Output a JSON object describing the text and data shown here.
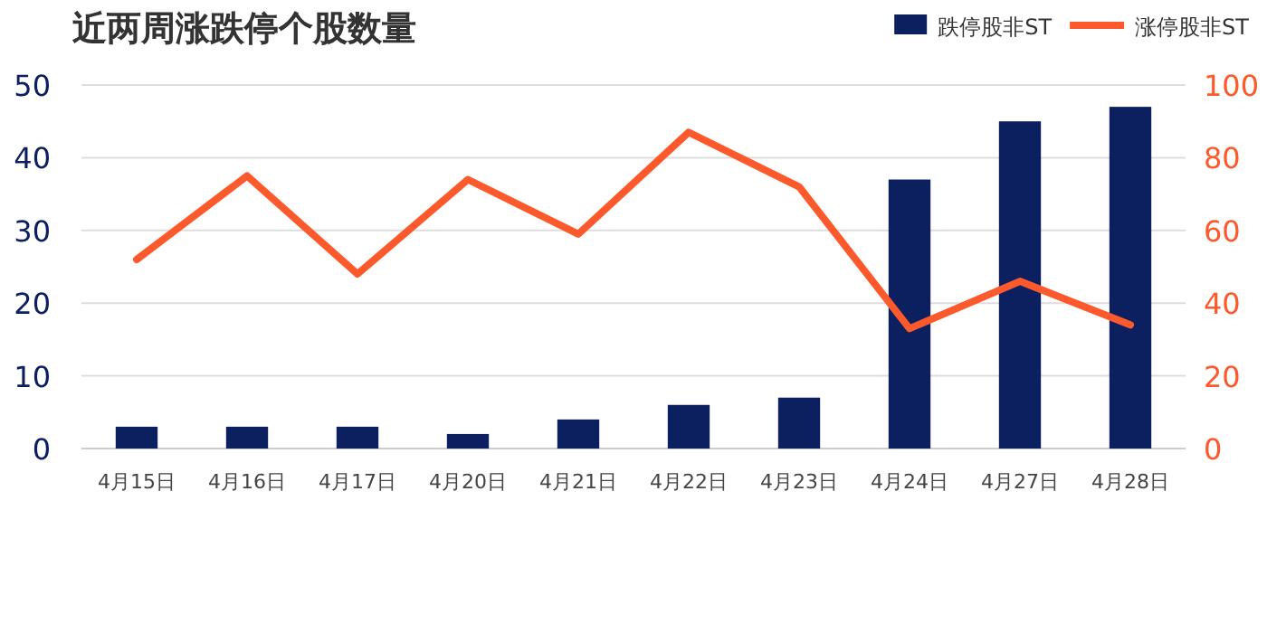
{
  "chart_data": {
    "type": "bar",
    "title": "近两周涨跌停个股数量",
    "categories": [
      "4月15日",
      "4月16日",
      "4月17日",
      "4月20日",
      "4月21日",
      "4月22日",
      "4月23日",
      "4月24日",
      "4月27日",
      "4月28日"
    ],
    "series": [
      {
        "name": "跌停股非ST",
        "color": "#0c1f5e",
        "values": [
          3,
          3,
          3,
          2,
          4,
          6,
          7,
          37,
          45,
          47
        ]
      },
      {
        "name": "涨停股非ST",
        "type": "line",
        "axis": "y2",
        "color": "#fc5a2c",
        "values": [
          52,
          75,
          48,
          74,
          59,
          87,
          72,
          33,
          46,
          34
        ]
      }
    ],
    "ylim": [
      0,
      50
    ],
    "yticks": [
      0,
      10,
      20,
      30,
      40,
      50
    ],
    "y2lim": [
      0,
      100
    ],
    "y2ticks": [
      0,
      20,
      40,
      60,
      80,
      100
    ],
    "grid": "y",
    "legend": "top right",
    "marker": "none",
    "line_style": "solid"
  }
}
